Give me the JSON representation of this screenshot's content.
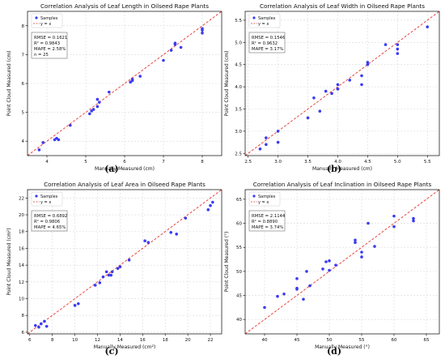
{
  "legend": {
    "samples": "Samples",
    "yx": "y = x"
  },
  "colors": {
    "point": "#3b3bf2",
    "refline": "#e8332a",
    "grid": "#d9d9d9",
    "axis": "#000000",
    "text": "#111111"
  },
  "chart_data": [
    {
      "panel_label": "(a)",
      "type": "scatter",
      "title": "Correlation Analysis of Leaf Length in Oilseed Rape Plants",
      "xlabel": "Manually Measured (cm)",
      "ylabel": "Point Cloud Measured (cm)",
      "xlim": [
        3.5,
        8.5
      ],
      "ylim": [
        3.5,
        8.5
      ],
      "xticks": [
        "4",
        "5",
        "6",
        "7",
        "8"
      ],
      "yticks": [
        "4",
        "5",
        "6",
        "7",
        "8"
      ],
      "xtick_values": [
        4,
        5,
        6,
        7,
        8
      ],
      "ytick_values": [
        4,
        5,
        6,
        7,
        8
      ],
      "grid": true,
      "legend_position": "top-left",
      "stats": [
        "RMSE = 0.1621",
        "R² = 0.9843",
        "MAPE = 2.58%",
        "n = 25"
      ],
      "x": [
        3.8,
        3.9,
        4.2,
        4.25,
        4.3,
        4.6,
        5.1,
        5.15,
        5.2,
        5.3,
        5.3,
        5.35,
        5.6,
        6.15,
        6.2,
        6.2,
        6.4,
        7.0,
        7.2,
        7.3,
        7.3,
        7.45,
        8.0,
        8.0,
        8.0
      ],
      "y": [
        3.7,
        3.95,
        4.05,
        4.1,
        4.05,
        4.55,
        4.95,
        5.05,
        5.1,
        5.2,
        5.45,
        5.35,
        5.7,
        6.05,
        6.1,
        6.15,
        6.25,
        6.8,
        7.15,
        7.4,
        7.35,
        7.25,
        7.75,
        7.85,
        7.9
      ]
    },
    {
      "panel_label": "(b)",
      "type": "scatter",
      "title": "Correlation Analysis of Leaf Width in Oilseed Rape Plants",
      "xlabel": "Manually Measured (cm)",
      "ylabel": "Point Cloud Measured (cm)",
      "xlim": [
        2.45,
        5.7
      ],
      "ylim": [
        2.45,
        5.7
      ],
      "xticks": [
        "2.5",
        "3.0",
        "3.5",
        "4.0",
        "4.5",
        "5.0",
        "5.5"
      ],
      "yticks": [
        "2.5",
        "3.0",
        "3.5",
        "4.0",
        "4.5",
        "5.0",
        "5.5"
      ],
      "xtick_values": [
        2.5,
        3.0,
        3.5,
        4.0,
        4.5,
        5.0,
        5.5
      ],
      "ytick_values": [
        2.5,
        3.0,
        3.5,
        4.0,
        4.5,
        5.0,
        5.5
      ],
      "grid": true,
      "legend_position": "top-left",
      "stats": [
        "RMSE = 0.1546",
        "R² = 0.9632",
        "MAPE = 3.17%"
      ],
      "x": [
        2.7,
        2.8,
        2.8,
        3.0,
        3.0,
        3.5,
        3.6,
        3.7,
        3.8,
        3.9,
        4.0,
        4.0,
        4.0,
        4.2,
        4.4,
        4.4,
        4.5,
        4.5,
        4.8,
        5.0,
        5.0,
        5.0,
        5.5
      ],
      "y": [
        2.6,
        2.7,
        2.85,
        2.75,
        3.0,
        3.3,
        3.75,
        3.45,
        3.9,
        3.85,
        3.95,
        4.05,
        3.95,
        4.15,
        4.05,
        4.25,
        4.55,
        4.5,
        4.95,
        4.75,
        4.85,
        4.95,
        5.35
      ]
    },
    {
      "panel_label": "(c)",
      "type": "scatter",
      "title": "Correlation Analysis of Leaf Area in Oilseed Rape Plants",
      "xlabel": "Manually Measured (cm²)",
      "ylabel": "Point Cloud Measured (cm²)",
      "xlim": [
        5.8,
        23
      ],
      "ylim": [
        5.8,
        23
      ],
      "xticks": [
        "6",
        "8",
        "10",
        "12",
        "14",
        "16",
        "18",
        "20",
        "22"
      ],
      "yticks": [
        "6",
        "8",
        "10",
        "12",
        "14",
        "16",
        "18",
        "20",
        "22"
      ],
      "xtick_values": [
        6,
        8,
        10,
        12,
        14,
        16,
        18,
        20,
        22
      ],
      "ytick_values": [
        6,
        8,
        10,
        12,
        14,
        16,
        18,
        20,
        22
      ],
      "grid": true,
      "legend_position": "top-left",
      "stats": [
        "RMSE = 0.6892",
        "R² = 0.9806",
        "MAPE = 4.65%"
      ],
      "x": [
        6.5,
        6.8,
        7.0,
        7.3,
        7.5,
        10.0,
        10.3,
        11.8,
        12.2,
        12.5,
        12.8,
        13.0,
        13.2,
        13.3,
        13.8,
        14.0,
        14.8,
        16.2,
        16.5,
        18.5,
        19.0,
        19.8,
        21.8,
        22.0,
        22.2
      ],
      "y": [
        6.8,
        6.6,
        7.0,
        7.3,
        6.7,
        9.2,
        9.4,
        11.6,
        11.9,
        12.6,
        13.2,
        12.8,
        12.8,
        13.2,
        13.6,
        13.8,
        14.6,
        16.9,
        16.7,
        17.9,
        17.7,
        19.6,
        20.6,
        21.1,
        21.5
      ]
    },
    {
      "panel_label": "(d)",
      "type": "scatter",
      "title": "Correlation Analysis of Leaf Inclination in Oilseed Rape Plants",
      "xlabel": "Manually Measured (°)",
      "ylabel": "Point Cloud Measured (°)",
      "xlim": [
        37,
        67
      ],
      "ylim": [
        37,
        67
      ],
      "xticks": [
        "40",
        "45",
        "50",
        "55",
        "60",
        "65"
      ],
      "yticks": [
        "40",
        "45",
        "50",
        "55",
        "60",
        "65"
      ],
      "xtick_values": [
        40,
        45,
        50,
        55,
        60,
        65
      ],
      "ytick_values": [
        40,
        45,
        50,
        55,
        60,
        65
      ],
      "grid": true,
      "legend_position": "top-left",
      "stats": [
        "RMSE = 2.1144",
        "R² = 0.8890",
        "MAPE = 3.74%"
      ],
      "x": [
        40,
        42,
        43,
        45,
        45,
        45,
        46,
        46.5,
        47,
        49,
        49.5,
        50,
        50,
        51,
        54,
        54,
        55,
        55,
        56,
        57,
        60,
        60,
        63,
        63
      ],
      "y": [
        42.5,
        44.8,
        45.3,
        46.3,
        46.5,
        48.5,
        44.2,
        50.0,
        47.0,
        50.5,
        52.0,
        50.2,
        52.2,
        51.3,
        56.0,
        56.5,
        53.0,
        54.0,
        60.0,
        55.2,
        59.3,
        61.5,
        60.5,
        61.0
      ]
    }
  ]
}
